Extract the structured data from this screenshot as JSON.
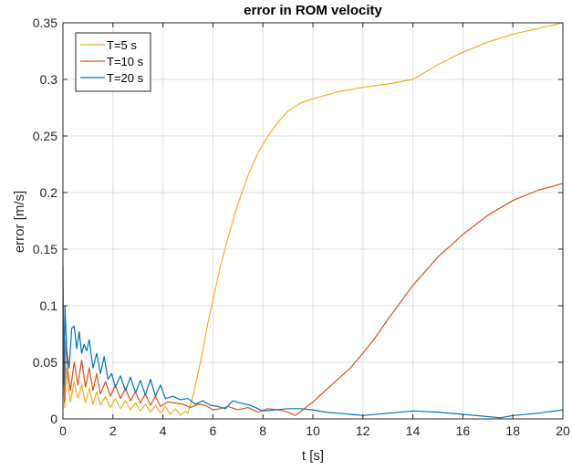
{
  "chart_data": {
    "type": "line",
    "title": "error in ROM velocity",
    "xlabel": "t [s]",
    "ylabel": "error [m/s]",
    "xlim": [
      0,
      20
    ],
    "ylim": [
      0,
      0.35
    ],
    "xticks": [
      0,
      2,
      4,
      6,
      8,
      10,
      12,
      14,
      16,
      18,
      20
    ],
    "yticks": [
      0,
      0.05,
      0.1,
      0.15,
      0.2,
      0.25,
      0.3,
      0.35
    ],
    "xtick_labels": [
      "0",
      "2",
      "4",
      "6",
      "8",
      "10",
      "12",
      "14",
      "16",
      "18",
      "20"
    ],
    "ytick_labels": [
      "0",
      "0.05",
      "0.1",
      "0.15",
      "0.2",
      "0.25",
      "0.3",
      "0.35"
    ],
    "grid": true,
    "legend_position": "top-left",
    "series": [
      {
        "name": "T=5 s",
        "color": "#EDB120",
        "x": [
          0,
          0.07,
          0.14,
          0.2,
          0.3,
          0.45,
          0.6,
          0.75,
          0.9,
          1.05,
          1.2,
          1.35,
          1.5,
          1.7,
          1.9,
          2.1,
          2.3,
          2.5,
          2.7,
          2.9,
          3.1,
          3.3,
          3.5,
          3.7,
          3.9,
          4.1,
          4.3,
          4.5,
          4.7,
          4.9,
          5.0,
          5.2,
          5.5,
          5.8,
          6.0,
          6.3,
          6.6,
          7.0,
          7.4,
          7.8,
          8.2,
          8.6,
          9.0,
          9.5,
          10.0,
          10.5,
          11.0,
          12.0,
          13.0,
          14.0,
          15.0,
          16.0,
          17.0,
          18.0,
          19.0,
          20.0
        ],
        "values": [
          0.06,
          0.01,
          0.045,
          0.03,
          0.015,
          0.033,
          0.018,
          0.03,
          0.014,
          0.027,
          0.013,
          0.024,
          0.012,
          0.02,
          0.01,
          0.018,
          0.009,
          0.016,
          0.008,
          0.014,
          0.007,
          0.013,
          0.006,
          0.012,
          0.005,
          0.011,
          0.004,
          0.009,
          0.003,
          0.007,
          0.005,
          0.02,
          0.05,
          0.085,
          0.105,
          0.135,
          0.16,
          0.19,
          0.215,
          0.235,
          0.25,
          0.262,
          0.272,
          0.279,
          0.283,
          0.286,
          0.289,
          0.293,
          0.296,
          0.3,
          0.313,
          0.324,
          0.333,
          0.34,
          0.345,
          0.35
        ]
      },
      {
        "name": "T=10 s",
        "color": "#D95319",
        "x": [
          0,
          0.06,
          0.12,
          0.2,
          0.3,
          0.45,
          0.6,
          0.75,
          0.9,
          1.05,
          1.2,
          1.35,
          1.5,
          1.7,
          1.9,
          2.1,
          2.3,
          2.5,
          2.7,
          2.9,
          3.1,
          3.3,
          3.5,
          3.7,
          3.9,
          4.2,
          4.5,
          4.8,
          5.1,
          5.4,
          5.7,
          6.0,
          6.3,
          6.6,
          7.0,
          7.4,
          7.8,
          8.2,
          8.6,
          9.0,
          9.3,
          9.6,
          10.0,
          10.5,
          11.0,
          11.5,
          12.0,
          12.5,
          13.0,
          14.0,
          15.0,
          16.0,
          17.0,
          18.0,
          19.0,
          20.0
        ],
        "values": [
          0.085,
          0.015,
          0.07,
          0.04,
          0.025,
          0.05,
          0.03,
          0.052,
          0.028,
          0.045,
          0.025,
          0.04,
          0.022,
          0.033,
          0.02,
          0.03,
          0.018,
          0.027,
          0.016,
          0.024,
          0.014,
          0.022,
          0.012,
          0.02,
          0.011,
          0.015,
          0.014,
          0.013,
          0.01,
          0.013,
          0.012,
          0.008,
          0.009,
          0.011,
          0.008,
          0.01,
          0.006,
          0.009,
          0.008,
          0.006,
          0.003,
          0.008,
          0.015,
          0.025,
          0.035,
          0.045,
          0.058,
          0.072,
          0.088,
          0.118,
          0.143,
          0.163,
          0.18,
          0.193,
          0.202,
          0.208
        ]
      },
      {
        "name": "T=20 s",
        "color": "#0072BD",
        "x": [
          0,
          0.04,
          0.08,
          0.15,
          0.25,
          0.35,
          0.45,
          0.55,
          0.65,
          0.75,
          0.85,
          0.95,
          1.05,
          1.2,
          1.35,
          1.5,
          1.65,
          1.8,
          1.95,
          2.1,
          2.3,
          2.5,
          2.7,
          2.9,
          3.1,
          3.3,
          3.5,
          3.7,
          3.9,
          4.1,
          4.4,
          4.7,
          5.0,
          5.3,
          5.6,
          5.9,
          6.2,
          6.5,
          6.8,
          7.1,
          7.5,
          8.0,
          8.5,
          9.0,
          9.5,
          10.0,
          10.5,
          11.0,
          11.5,
          12.0,
          13.0,
          14.0,
          15.0,
          16.0,
          17.0,
          17.5,
          18.0,
          19.0,
          20.0
        ],
        "values": [
          0.135,
          0.03,
          0.1,
          0.06,
          0.045,
          0.08,
          0.082,
          0.062,
          0.077,
          0.058,
          0.066,
          0.06,
          0.07,
          0.045,
          0.058,
          0.04,
          0.055,
          0.035,
          0.04,
          0.028,
          0.038,
          0.025,
          0.037,
          0.023,
          0.034,
          0.021,
          0.035,
          0.02,
          0.03,
          0.018,
          0.02,
          0.017,
          0.018,
          0.013,
          0.016,
          0.012,
          0.011,
          0.009,
          0.016,
          0.014,
          0.012,
          0.007,
          0.008,
          0.009,
          0.009,
          0.008,
          0.006,
          0.005,
          0.004,
          0.003,
          0.005,
          0.007,
          0.006,
          0.004,
          0.002,
          0.001,
          0.003,
          0.005,
          0.008
        ]
      }
    ]
  }
}
